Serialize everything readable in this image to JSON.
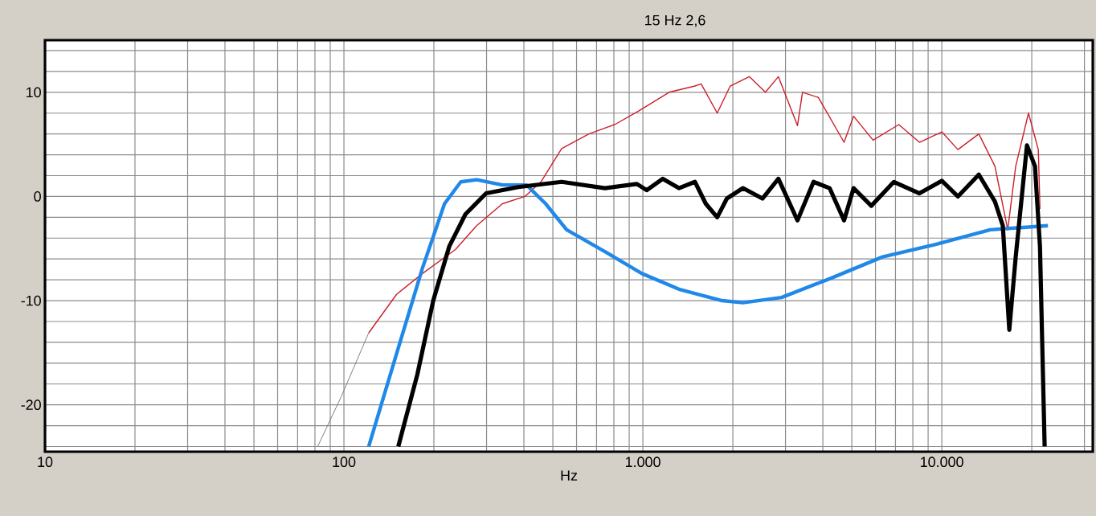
{
  "chart_data": {
    "type": "line",
    "title": "15 Hz  2,6",
    "xlabel": "Hz",
    "log": "x",
    "grid": true,
    "marker": "none",
    "line_style": "solid",
    "xlim": [
      10,
      32000
    ],
    "ylim": [
      -24.5,
      15
    ],
    "xticks": [
      10,
      {
        "value": 20,
        "label": null
      },
      {
        "value": 30,
        "label": null
      },
      {
        "value": 40,
        "label": null
      },
      {
        "value": 50,
        "label": null
      },
      {
        "value": 60,
        "label": null
      },
      {
        "value": 70,
        "label": null
      },
      {
        "value": 80,
        "label": null
      },
      {
        "value": 90,
        "label": null
      },
      100,
      {
        "value": 200,
        "label": null
      },
      {
        "value": 300,
        "label": null
      },
      {
        "value": 400,
        "label": null
      },
      {
        "value": 500,
        "label": null
      },
      {
        "value": 600,
        "label": null
      },
      {
        "value": 700,
        "label": null
      },
      {
        "value": 800,
        "label": null
      },
      {
        "value": 900,
        "label": null
      },
      {
        "value": 1000,
        "label": "1.000"
      },
      {
        "value": 2000,
        "label": null
      },
      {
        "value": 3000,
        "label": null
      },
      {
        "value": 4000,
        "label": null
      },
      {
        "value": 5000,
        "label": null
      },
      {
        "value": 6000,
        "label": null
      },
      {
        "value": 7000,
        "label": null
      },
      {
        "value": 8000,
        "label": null
      },
      {
        "value": 9000,
        "label": null
      },
      {
        "value": 10000,
        "label": "10.000"
      },
      {
        "value": 20000,
        "label": null
      },
      {
        "value": 30000,
        "label": null
      }
    ],
    "yticks": [
      {
        "value": -24,
        "label": null
      },
      {
        "value": -22,
        "label": null
      },
      -20,
      {
        "value": -18,
        "label": null
      },
      {
        "value": -16,
        "label": null
      },
      {
        "value": -14,
        "label": null
      },
      {
        "value": -12,
        "label": null
      },
      -10,
      {
        "value": -8,
        "label": null
      },
      {
        "value": -6,
        "label": null
      },
      {
        "value": -4,
        "label": null
      },
      {
        "value": -2,
        "label": null
      },
      0,
      {
        "value": 2,
        "label": null
      },
      {
        "value": 4,
        "label": null
      },
      {
        "value": 6,
        "label": null
      },
      {
        "value": 8,
        "label": null
      },
      10,
      {
        "value": 12,
        "label": null
      },
      {
        "value": 14,
        "label": null
      }
    ],
    "series": [
      {
        "color": "#808080",
        "x": [
          81.7,
          98,
          121
        ],
        "values": [
          -24,
          -19.2,
          -13.1
        ]
      },
      {
        "color": "#cc1f2b",
        "x": [
          121,
          150,
          183,
          236,
          278,
          339,
          403,
          456,
          535,
          660,
          805,
          968,
          1224,
          1494,
          1567,
          1773,
          1960,
          2270,
          2570,
          2840,
          3290,
          3420,
          3866,
          4710,
          5070,
          5890,
          7180,
          8420,
          10000,
          11320,
          13300,
          15060,
          16620,
          17670,
          19500,
          21030,
          21300
        ],
        "values": [
          -13.1,
          -9.4,
          -7.4,
          -5.1,
          -2.8,
          -0.7,
          0,
          1.4,
          4.6,
          6,
          6.9,
          8.2,
          10,
          10.6,
          10.8,
          8,
          10.6,
          11.5,
          10,
          11.5,
          6.8,
          10,
          9.5,
          5.2,
          7.7,
          5.4,
          6.9,
          5.2,
          6.2,
          4.5,
          6,
          2.9,
          -3.2,
          2.9,
          8,
          4.5,
          -1.2
        ]
      },
      {
        "color": "#2088e8",
        "x": [
          121,
          150,
          183,
          217,
          246,
          278,
          339,
          408,
          473,
          556,
          747,
          993,
          1320,
          1841,
          2162,
          2910,
          4214,
          6339,
          9530,
          14520,
          22650
        ],
        "values": [
          -24,
          -15.1,
          -6.9,
          -0.7,
          1.4,
          1.6,
          1.1,
          1.1,
          -0.7,
          -3.2,
          -5.3,
          -7.4,
          -8.9,
          -10,
          -10.2,
          -9.7,
          -7.9,
          -5.8,
          -4.6,
          -3.2,
          -2.8
        ]
      },
      {
        "color": "#000000",
        "x": [
          152,
          176,
          199,
          225,
          255,
          299,
          383,
          535,
          747,
          955,
          1030,
          1166,
          1320,
          1494,
          1624,
          1773,
          1910,
          2162,
          2512,
          2840,
          3290,
          3724,
          4214,
          4710,
          5070,
          5810,
          6914,
          8420,
          10000,
          11320,
          13300,
          15060,
          16000,
          16820,
          17670,
          19270,
          20500,
          21300,
          22080
        ],
        "values": [
          -24,
          -17.1,
          -10,
          -4.8,
          -1.7,
          0.3,
          0.9,
          1.4,
          0.8,
          1.2,
          0.6,
          1.7,
          0.8,
          1.4,
          -0.7,
          -2,
          -0.2,
          0.8,
          -0.2,
          1.7,
          -2.3,
          1.4,
          0.8,
          -2.3,
          0.8,
          -0.9,
          1.4,
          0.3,
          1.5,
          0,
          2.1,
          -0.5,
          -2.8,
          -12.8,
          -5.8,
          4.9,
          2.9,
          -4.8,
          -24
        ]
      }
    ]
  }
}
